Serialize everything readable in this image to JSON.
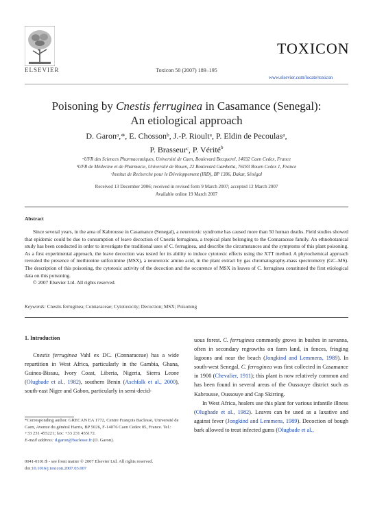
{
  "header": {
    "publisher": "ELSEVIER",
    "citation": "Toxicon 50 (2007) 189–195",
    "journal_name": "TOXICON",
    "journal_url": "www.elsevier.com/locate/toxicon"
  },
  "article": {
    "title_pre": "Poisoning by ",
    "title_species": "Cnestis ferruginea",
    "title_post": " in Casamance (Senegal):",
    "title_line2": "An etiological approach",
    "authors_line1": "D. Garonᵃ,*, E. Chossonᵇ, J.-P. Rioultᵃ, P. Eldin de Pecoulasᵃ,",
    "authors_line2": "P. Brasseurᶜ, P. Vérité",
    "authors_line2_sup": "b",
    "affiliations": [
      "ᵃUFR des Sciences Pharmaceutiques, Université de Caen, Boulevard Becquerel, 14032 Caen Cedex, France",
      "ᵇUFR de Médecine et de Pharmacie, Université de Rouen, 22 Boulevard Gambetta, 76183 Rouen Cedex 1, France",
      "ᶜInstitut de Recherche pour le Développement (IRD), BP 1386, Dakar, Sénégal"
    ],
    "dates_line1": "Received 13 December 2006; received in revised form 9 March 2007; accepted 12 March 2007",
    "dates_line2": "Available online 19 March 2007"
  },
  "abstract": {
    "heading": "Abstract",
    "text": "Since several years, in the area of Kabrousse in Casamance (Senegal), a neurotoxic syndrome has caused more than 50 human deaths. Field studies showed that epidemic could be due to consumption of leave decoction of Cnestis ferruginea, a tropical plant belonging to the Connaraceae family. An ethnobotanical study has been conducted in order to investigate the traditional uses of C. ferruginea, and describe the circumstances and the symptoms of this plant poisoning. As a first experimental approach, the leave decoction was tested for its ability to induce cytotoxic effects using the XTT method. A phytochemical approach revealed the presence of methionine sulfoximine (MSX), a neurotoxic amino acid, in the plant extract by gas chromatography-mass spectrometry (GC–MS). The description of this poisoning, the cytotoxic activity of the decoction and the occurence of MSX in leaves of C. ferruginea constituted the first etiological data on this poisoning.",
    "copyright": "© 2007 Elsevier Ltd. All rights reserved.",
    "keywords_label": "Keywords:",
    "keywords": " Cnestis ferruginea; Connaraceae; Cytotoxicity; Decoction; MSX; Poisoning"
  },
  "intro": {
    "heading": "1.  Introduction",
    "left_p1_species": "Cnestis ferruginea",
    "left_p1_a": " Vahl ex DC. (Connaraceae) has a wide repartition in West Africa, particularly in the Gambia, Ghana, Guinea-Bissau, Ivory Coast, Liberia, Nigeria, Sierra Leone (",
    "ref1": "Olugbade et al., 1982",
    "left_p1_b": "), southern Benin (",
    "ref2": "Aschfalk et al., 2000",
    "left_p1_c": "), south-east Niger and Gabon, particularly in semi-decid-",
    "right_p1_a": "uous forest. ",
    "right_species": "C. ferruginea",
    "right_p1_b": " commonly grows in bushes in savanna, often in secondary regrowths on farm land, in fences, fringing lagoons and near the beach (",
    "ref3": "Jongkind and Lemmens, 1989",
    "right_p1_c": "). In south-west Senegal, ",
    "right_p1_d": " was first collected in Casamance in 1900 (",
    "ref4": "Chevalier, 1911",
    "right_p1_e": "); this plant is now relatively common and has been found in several areas of the Oussouye district such as Kabrousse, Oussouye and Cap Skirring.",
    "right_p2_a": "In West Africa, healers use this plant for various infantile illness (",
    "ref5": "Olugbade et al., 1982",
    "right_p2_b": "). Leaves can be used as a laxative and against fever (",
    "ref6": "Jongkind and Lemmens, 1989",
    "right_p2_c": "). Decoction of bough bark allowed to treat infected gums (",
    "ref7": "Olugbade et al.,"
  },
  "footnote": {
    "line1": "*Corresponding author. GRECAN EA 1772, Centre François Baclesse, Université de Caen, Avenue du général Harris, BP 5026, F-14076 Caen Cedex 05, France. Tel.: +33 231 455221; fax: +33 231 455172.",
    "email_label": "E-mail address: ",
    "email": "d.garon@baclesse.fr",
    "email_name": " (D. Garon)."
  },
  "front_matter": {
    "line1": "0041-0101/$ - see front matter © 2007 Elsevier Ltd. All rights reserved.",
    "doi_label": "doi:",
    "doi": "10.1016/j.toxicon.2007.03.007"
  }
}
